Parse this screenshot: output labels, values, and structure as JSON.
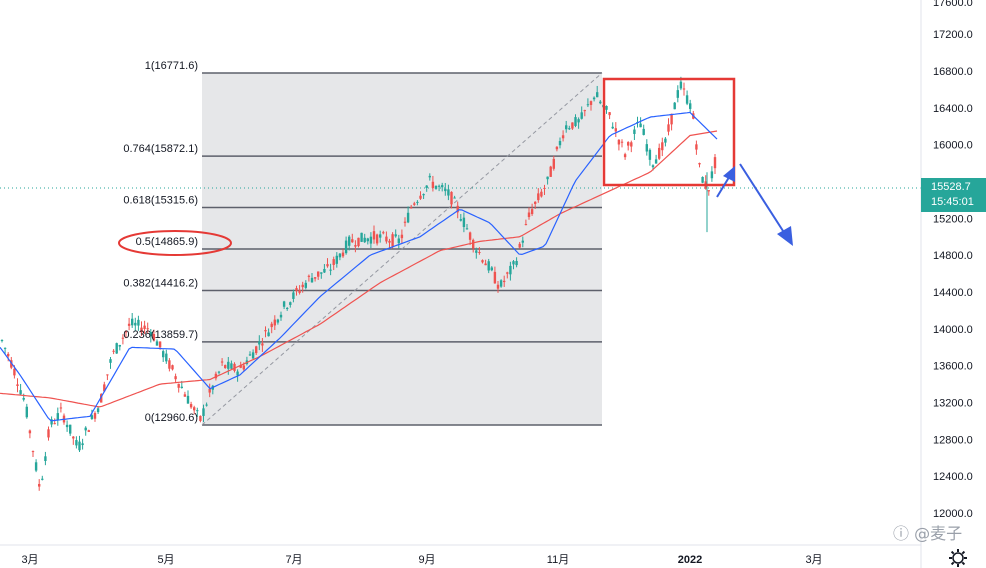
{
  "chart_data": {
    "type": "candlestick",
    "price_axis": {
      "labels": [
        "17200.0",
        "16800.0",
        "16400.0",
        "16000.0",
        "15600.0",
        "15200.0",
        "14800.0",
        "14400.0",
        "14000.0",
        "13600.0",
        "13200.0",
        "12800.0",
        "12400.0",
        "12000.0"
      ],
      "top_partial_label": "17600.0"
    },
    "time_axis": {
      "labels": [
        "3月",
        "5月",
        "7月",
        "9月",
        "11月",
        "2022",
        "3月"
      ]
    },
    "current_price": {
      "value": "15528.7",
      "time": "15:45:01"
    },
    "fibonacci": [
      {
        "label": "1(16771.6)",
        "level": 1,
        "price": 16771.6
      },
      {
        "label": "0.764(15872.1)",
        "level": 0.764,
        "price": 15872.1
      },
      {
        "label": "0.618(15315.6)",
        "level": 0.618,
        "price": 15315.6
      },
      {
        "label": "0.5(14865.9)",
        "level": 0.5,
        "price": 14865.9
      },
      {
        "label": "0.382(14416.2)",
        "level": 0.382,
        "price": 14416.2
      },
      {
        "label": "0.236(13859.7)",
        "level": 0.236,
        "price": 13859.7
      },
      {
        "label": "0(12960.6)",
        "level": 0,
        "price": 12960.6
      }
    ],
    "price_anchors": [
      [
        0,
        13920
      ],
      [
        12,
        13620
      ],
      [
        25,
        13200
      ],
      [
        40,
        12250
      ],
      [
        50,
        12950
      ],
      [
        62,
        13100
      ],
      [
        78,
        12700
      ],
      [
        100,
        13200
      ],
      [
        112,
        13700
      ],
      [
        130,
        14050
      ],
      [
        150,
        14000
      ],
      [
        165,
        13700
      ],
      [
        180,
        13400
      ],
      [
        200,
        13000
      ],
      [
        210,
        13300
      ],
      [
        222,
        13600
      ],
      [
        240,
        13550
      ],
      [
        260,
        13850
      ],
      [
        285,
        14250
      ],
      [
        310,
        14550
      ],
      [
        330,
        14650
      ],
      [
        350,
        14950
      ],
      [
        375,
        15000
      ],
      [
        400,
        14950
      ],
      [
        412,
        15350
      ],
      [
        430,
        15600
      ],
      [
        450,
        15450
      ],
      [
        460,
        15250
      ],
      [
        475,
        14900
      ],
      [
        490,
        14650
      ],
      [
        500,
        14450
      ],
      [
        515,
        14700
      ],
      [
        530,
        15250
      ],
      [
        548,
        15600
      ],
      [
        565,
        16200
      ],
      [
        580,
        16250
      ],
      [
        595,
        16550
      ],
      [
        610,
        16300
      ],
      [
        625,
        15900
      ],
      [
        640,
        16250
      ],
      [
        652,
        15800
      ],
      [
        665,
        16000
      ],
      [
        680,
        16650
      ],
      [
        692,
        16400
      ],
      [
        700,
        15700
      ],
      [
        708,
        15500
      ],
      [
        715,
        15800
      ]
    ],
    "ma_blue_anchors": [
      [
        0,
        13800
      ],
      [
        20,
        13500
      ],
      [
        50,
        13000
      ],
      [
        90,
        13050
      ],
      [
        130,
        13800
      ],
      [
        175,
        13780
      ],
      [
        210,
        13350
      ],
      [
        240,
        13500
      ],
      [
        280,
        13900
      ],
      [
        320,
        14350
      ],
      [
        370,
        14800
      ],
      [
        420,
        15000
      ],
      [
        460,
        15300
      ],
      [
        490,
        15150
      ],
      [
        520,
        14800
      ],
      [
        545,
        14900
      ],
      [
        575,
        15600
      ],
      [
        610,
        16100
      ],
      [
        650,
        16300
      ],
      [
        690,
        16350
      ],
      [
        718,
        16050
      ]
    ],
    "ma_red_anchors": [
      [
        0,
        13300
      ],
      [
        50,
        13250
      ],
      [
        100,
        13150
      ],
      [
        160,
        13400
      ],
      [
        210,
        13450
      ],
      [
        260,
        13700
      ],
      [
        320,
        14050
      ],
      [
        380,
        14500
      ],
      [
        440,
        14850
      ],
      [
        480,
        14950
      ],
      [
        520,
        15000
      ],
      [
        560,
        15250
      ],
      [
        600,
        15450
      ],
      [
        650,
        15700
      ],
      [
        690,
        16100
      ],
      [
        718,
        16150
      ]
    ]
  }
}
